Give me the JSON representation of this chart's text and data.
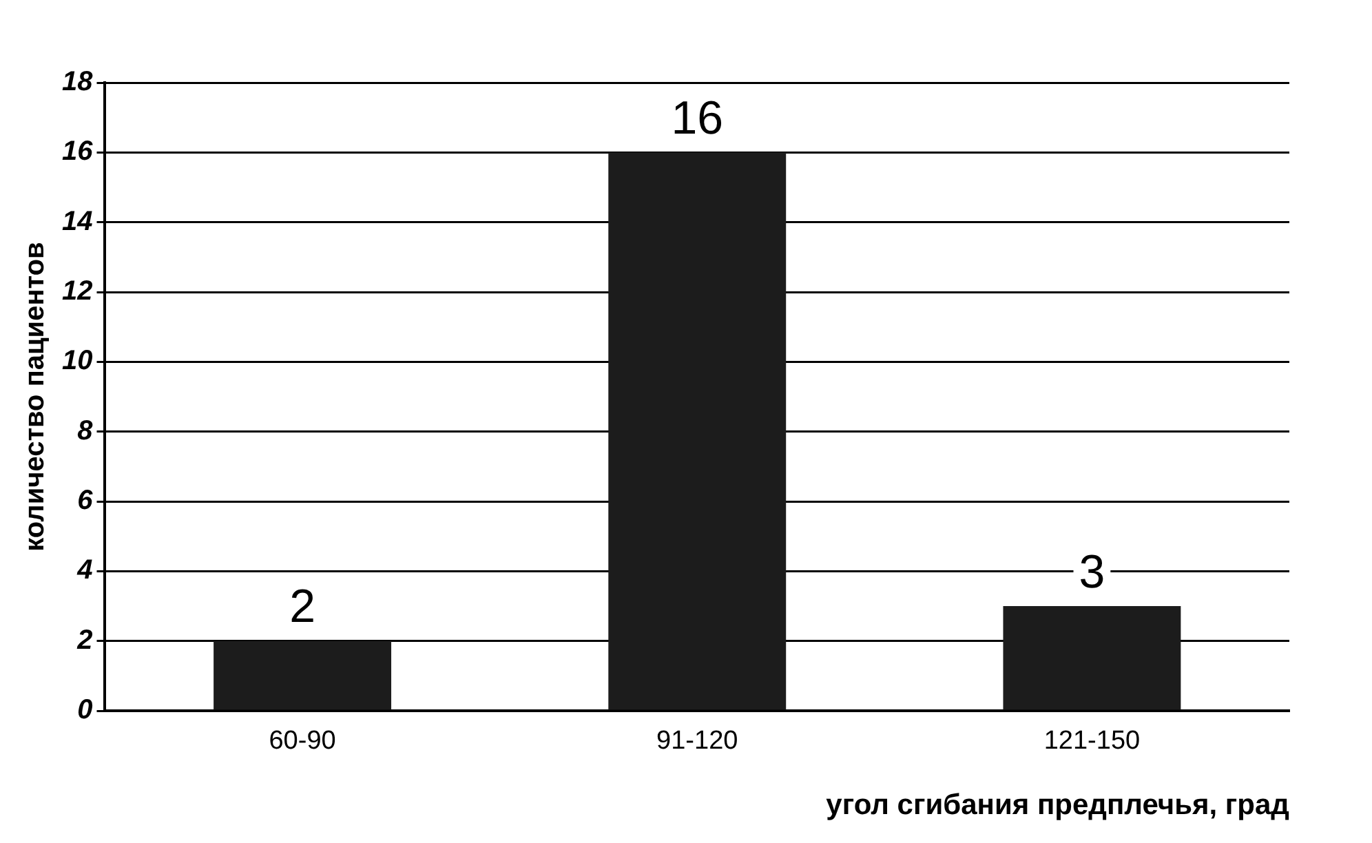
{
  "chart_data": {
    "type": "bar",
    "xlabel": "угол сгибания предплечья, град",
    "ylabel": "количество пациентов",
    "categories": [
      "60-90",
      "91-120",
      "121-150"
    ],
    "values": [
      2,
      16,
      3
    ],
    "color": "#1c1c1c",
    "ylim": [
      0,
      18
    ],
    "yticks": [
      0,
      2,
      4,
      6,
      8,
      10,
      12,
      14,
      16,
      18
    ],
    "grid": "y",
    "data_labels": true,
    "legend": false
  }
}
